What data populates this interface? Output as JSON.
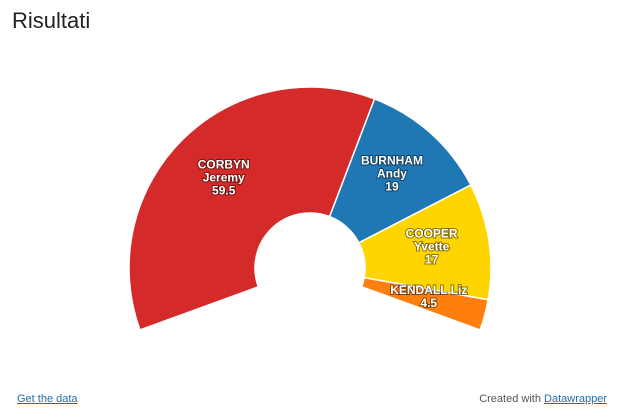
{
  "chart_data": {
    "type": "semi-donut",
    "title": "Risultati",
    "categories": [
      [
        "CORBYN",
        "Jeremy"
      ],
      [
        "BURNHAM",
        "Andy"
      ],
      [
        "COOPER",
        "Yvette"
      ],
      [
        "KENDALL Liz"
      ]
    ],
    "values": [
      59.5,
      19,
      17,
      4.5
    ],
    "colors": [
      "#d52a2a",
      "#1f77b4",
      "#ffd500",
      "#ff7f0e"
    ]
  },
  "footer": {
    "data_link": "Get the data",
    "credit": "Created with",
    "credit_link": "Datawrapper"
  }
}
